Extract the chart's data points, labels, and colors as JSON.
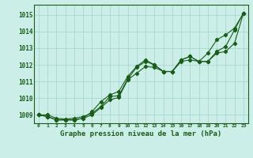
{
  "title": "Graphe pression niveau de la mer (hPa)",
  "x_labels": [
    "0",
    "1",
    "2",
    "3",
    "4",
    "5",
    "6",
    "7",
    "8",
    "9",
    "10",
    "11",
    "12",
    "13",
    "14",
    "15",
    "16",
    "17",
    "18",
    "19",
    "20",
    "21",
    "22",
    "23"
  ],
  "xlim": [
    -0.5,
    23.5
  ],
  "ylim": [
    1008.5,
    1015.6
  ],
  "yticks": [
    1009,
    1010,
    1011,
    1012,
    1013,
    1014,
    1015
  ],
  "background_color": "#cceee8",
  "grid_color": "#aad8d0",
  "line_color": "#1a5c1a",
  "line1": [
    1009.0,
    1009.0,
    1008.8,
    1008.75,
    1008.8,
    1008.9,
    1009.1,
    1009.5,
    1010.1,
    1010.15,
    1011.15,
    1011.85,
    1012.2,
    1012.0,
    1011.6,
    1011.6,
    1012.3,
    1012.5,
    1012.2,
    1012.2,
    1012.8,
    1013.1,
    1014.1,
    1015.1
  ],
  "line2": [
    1009.0,
    1008.9,
    1008.7,
    1008.7,
    1008.7,
    1008.8,
    1009.0,
    1009.45,
    1009.9,
    1010.05,
    1011.1,
    1011.5,
    1011.9,
    1011.85,
    1011.6,
    1011.6,
    1012.2,
    1012.3,
    1012.2,
    1012.2,
    1012.7,
    1012.8,
    1013.3,
    1015.1
  ],
  "line3": [
    1009.0,
    1008.9,
    1008.7,
    1008.7,
    1008.7,
    1008.8,
    1009.2,
    1009.8,
    1010.2,
    1010.4,
    1011.3,
    1011.9,
    1012.3,
    1012.0,
    1011.6,
    1011.6,
    1012.3,
    1012.5,
    1012.2,
    1012.7,
    1013.5,
    1013.8,
    1014.2,
    1015.1
  ],
  "figwidth": 3.2,
  "figheight": 2.0,
  "dpi": 100
}
